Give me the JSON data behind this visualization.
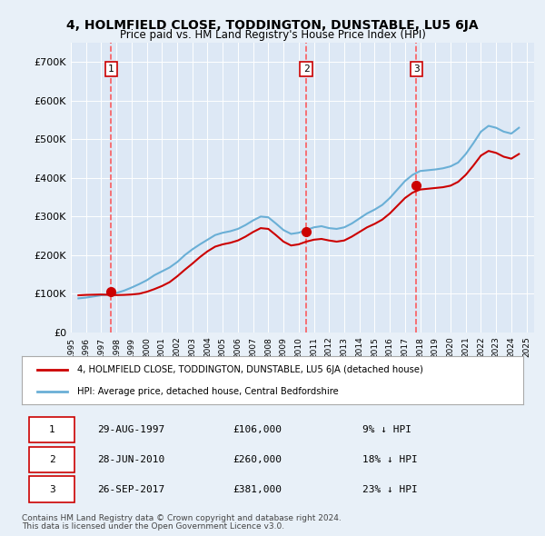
{
  "title": "4, HOLMFIELD CLOSE, TODDINGTON, DUNSTABLE, LU5 6JA",
  "subtitle": "Price paid vs. HM Land Registry's House Price Index (HPI)",
  "ylabel": "",
  "background_color": "#e8f0f8",
  "plot_bg_color": "#dde8f5",
  "ylim": [
    0,
    750000
  ],
  "yticks": [
    0,
    100000,
    200000,
    300000,
    400000,
    500000,
    600000,
    700000
  ],
  "ytick_labels": [
    "£0",
    "£100K",
    "£200K",
    "£300K",
    "£400K",
    "£500K",
    "£600K",
    "£700K"
  ],
  "hpi_color": "#6aafd6",
  "price_color": "#cc0000",
  "sale_marker_color": "#cc0000",
  "dashed_line_color": "#ff4444",
  "sales": [
    {
      "year": 1997.66,
      "price": 106000,
      "label": "1"
    },
    {
      "year": 2010.49,
      "price": 260000,
      "label": "2"
    },
    {
      "year": 2017.74,
      "price": 381000,
      "label": "3"
    }
  ],
  "legend_entries": [
    "4, HOLMFIELD CLOSE, TODDINGTON, DUNSTABLE, LU5 6JA (detached house)",
    "HPI: Average price, detached house, Central Bedfordshire"
  ],
  "table_rows": [
    [
      "1",
      "29-AUG-1997",
      "£106,000",
      "9% ↓ HPI"
    ],
    [
      "2",
      "28-JUN-2010",
      "£260,000",
      "18% ↓ HPI"
    ],
    [
      "3",
      "26-SEP-2017",
      "£381,000",
      "23% ↓ HPI"
    ]
  ],
  "footer": [
    "Contains HM Land Registry data © Crown copyright and database right 2024.",
    "This data is licensed under the Open Government Licence v3.0."
  ],
  "hpi_data_x": [
    1995.5,
    1996.0,
    1996.5,
    1997.0,
    1997.5,
    1998.0,
    1998.5,
    1999.0,
    1999.5,
    2000.0,
    2000.5,
    2001.0,
    2001.5,
    2002.0,
    2002.5,
    2003.0,
    2003.5,
    2004.0,
    2004.5,
    2005.0,
    2005.5,
    2006.0,
    2006.5,
    2007.0,
    2007.5,
    2008.0,
    2008.5,
    2009.0,
    2009.5,
    2010.0,
    2010.5,
    2011.0,
    2011.5,
    2012.0,
    2012.5,
    2013.0,
    2013.5,
    2014.0,
    2014.5,
    2015.0,
    2015.5,
    2016.0,
    2016.5,
    2017.0,
    2017.5,
    2018.0,
    2018.5,
    2019.0,
    2019.5,
    2020.0,
    2020.5,
    2021.0,
    2021.5,
    2022.0,
    2022.5,
    2023.0,
    2023.5,
    2024.0,
    2024.5
  ],
  "hpi_data_y": [
    88000,
    90000,
    93000,
    96000,
    99000,
    102000,
    108000,
    116000,
    125000,
    135000,
    148000,
    158000,
    168000,
    182000,
    200000,
    215000,
    228000,
    240000,
    252000,
    258000,
    262000,
    268000,
    278000,
    290000,
    300000,
    298000,
    282000,
    265000,
    255000,
    258000,
    265000,
    272000,
    275000,
    270000,
    268000,
    272000,
    282000,
    295000,
    308000,
    318000,
    330000,
    348000,
    370000,
    392000,
    408000,
    418000,
    420000,
    422000,
    425000,
    430000,
    440000,
    462000,
    490000,
    520000,
    535000,
    530000,
    520000,
    515000,
    530000
  ],
  "price_index_x": [
    1995.5,
    1996.0,
    1996.5,
    1997.0,
    1997.5,
    1998.0,
    1998.5,
    1999.0,
    1999.5,
    2000.0,
    2000.5,
    2001.0,
    2001.5,
    2002.0,
    2002.5,
    2003.0,
    2003.5,
    2004.0,
    2004.5,
    2005.0,
    2005.5,
    2006.0,
    2006.5,
    2007.0,
    2007.5,
    2008.0,
    2008.5,
    2009.0,
    2009.5,
    2010.0,
    2010.5,
    2011.0,
    2011.5,
    2012.0,
    2012.5,
    2013.0,
    2013.5,
    2014.0,
    2014.5,
    2015.0,
    2015.5,
    2016.0,
    2016.5,
    2017.0,
    2017.5,
    2018.0,
    2018.5,
    2019.0,
    2019.5,
    2020.0,
    2020.5,
    2021.0,
    2021.5,
    2022.0,
    2022.5,
    2023.0,
    2023.5,
    2024.0,
    2024.5
  ],
  "price_index_y": [
    96000,
    97000,
    97500,
    98000,
    97000,
    96500,
    97000,
    98000,
    100000,
    105000,
    112000,
    120000,
    130000,
    145000,
    162000,
    178000,
    195000,
    210000,
    222000,
    228000,
    232000,
    238000,
    248000,
    260000,
    270000,
    268000,
    252000,
    235000,
    225000,
    228000,
    235000,
    240000,
    242000,
    238000,
    235000,
    238000,
    248000,
    260000,
    272000,
    281000,
    292000,
    308000,
    328000,
    348000,
    362000,
    370000,
    372000,
    374000,
    376000,
    380000,
    390000,
    408000,
    432000,
    458000,
    470000,
    465000,
    455000,
    450000,
    462000
  ]
}
